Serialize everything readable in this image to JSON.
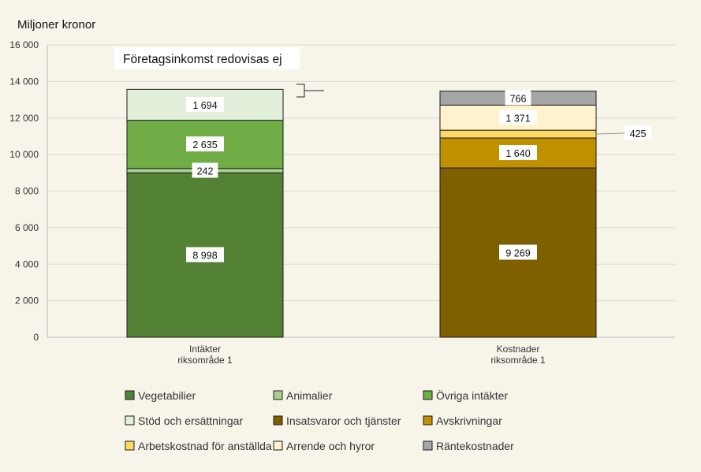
{
  "chart_data": {
    "type": "bar",
    "stacked": true,
    "ylabel": "Miljoner kronor",
    "ylim": [
      0,
      16000
    ],
    "yticks": [
      0,
      2000,
      4000,
      6000,
      8000,
      10000,
      12000,
      14000,
      16000
    ],
    "ytick_labels": [
      "0",
      "2 000",
      "4 000",
      "6 000",
      "8 000",
      "10 000",
      "12 000",
      "14 000",
      "16 000"
    ],
    "grid": true,
    "legend_position": "bottom",
    "annotation": "Företagsinkomst redovisas ej",
    "categories": [
      [
        "Intäkter",
        "riksområde 1"
      ],
      [
        "Kostnader",
        "riksområde 1"
      ]
    ],
    "series": [
      {
        "name": "Vegetabilier",
        "color": "#548235",
        "values": [
          8998,
          0
        ],
        "labels": [
          "8 998",
          ""
        ]
      },
      {
        "name": "Animalier",
        "color": "#a9d18e",
        "values": [
          242,
          0
        ],
        "labels": [
          "242",
          ""
        ]
      },
      {
        "name": "Övriga intäkter",
        "color": "#70ad47",
        "values": [
          2635,
          0
        ],
        "labels": [
          "2 635",
          ""
        ]
      },
      {
        "name": "Stöd och ersättningar",
        "color": "#e2efda",
        "values": [
          1694,
          0
        ],
        "labels": [
          "1 694",
          ""
        ]
      },
      {
        "name": "Insatsvaror och tjänster",
        "color": "#7f6000",
        "values": [
          0,
          9269
        ],
        "labels": [
          "",
          "9 269"
        ]
      },
      {
        "name": "Avskrivningar",
        "color": "#bf9000",
        "values": [
          0,
          1640
        ],
        "labels": [
          "",
          "1 640"
        ]
      },
      {
        "name": "Arbetskostnad för anställda",
        "color": "#ffd966",
        "values": [
          0,
          425
        ],
        "labels": [
          "",
          "425"
        ]
      },
      {
        "name": "Arrende och hyror",
        "color": "#fff2cc",
        "values": [
          0,
          1371
        ],
        "labels": [
          "",
          "1 371"
        ]
      },
      {
        "name": "Räntekostnader",
        "color": "#a6a6a6",
        "values": [
          0,
          766
        ],
        "labels": [
          "",
          "766"
        ]
      }
    ],
    "legend_order": [
      "Vegetabilier",
      "Animalier",
      "Övriga intäkter",
      "Stöd och ersättningar",
      "Insatsvaror och tjänster",
      "Avskrivningar",
      "Arbetskostnad för anställda",
      "Arrende och hyror",
      "Räntekostnader"
    ]
  }
}
